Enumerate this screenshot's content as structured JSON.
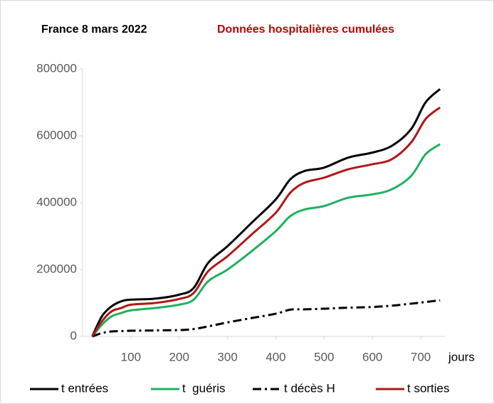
{
  "chart_data": {
    "type": "line",
    "title": "France 8 mars 2022",
    "subtitle": "Données hospitalières cumulées",
    "x_label": "jours",
    "x": [
      20,
      40,
      60,
      80,
      100,
      150,
      200,
      230,
      260,
      300,
      350,
      400,
      430,
      460,
      500,
      550,
      600,
      640,
      680,
      710,
      740
    ],
    "series": [
      {
        "name": "t entrées",
        "color": "#000000",
        "dash": "solid",
        "values": [
          0,
          60000,
          90000,
          105000,
          110000,
          113000,
          125000,
          145000,
          220000,
          270000,
          340000,
          410000,
          470000,
          495000,
          505000,
          535000,
          550000,
          570000,
          620000,
          700000,
          740000
        ]
      },
      {
        "name": "t  guéris",
        "color": "#20b060",
        "dash": "solid",
        "values": [
          0,
          35000,
          60000,
          70000,
          78000,
          85000,
          95000,
          110000,
          165000,
          200000,
          255000,
          315000,
          360000,
          380000,
          390000,
          415000,
          425000,
          440000,
          480000,
          545000,
          575000
        ]
      },
      {
        "name": "t décès H",
        "color": "#000000",
        "dash": "dashdot",
        "values": [
          0,
          10000,
          15000,
          16000,
          17000,
          18000,
          19000,
          22000,
          30000,
          42000,
          55000,
          68000,
          80000,
          81000,
          83000,
          86000,
          88000,
          92000,
          98000,
          103000,
          108000
        ]
      },
      {
        "name": "t sorties",
        "color": "#b01818",
        "dash": "solid",
        "values": [
          0,
          45000,
          75000,
          85000,
          95000,
          100000,
          112000,
          130000,
          195000,
          240000,
          305000,
          370000,
          430000,
          460000,
          475000,
          500000,
          515000,
          530000,
          580000,
          650000,
          685000
        ]
      }
    ],
    "xlim": [
      0,
      750
    ],
    "xticks": [
      100,
      200,
      300,
      400,
      500,
      600,
      700
    ],
    "ylim": [
      0,
      800000
    ],
    "yticks": [
      0,
      200000,
      400000,
      600000,
      800000
    ]
  }
}
